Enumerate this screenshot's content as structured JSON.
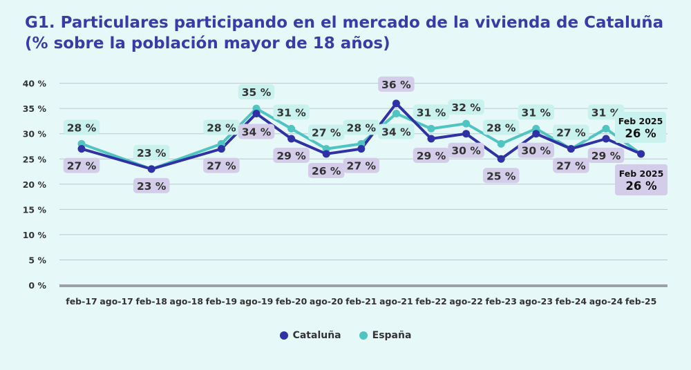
{
  "chart_data": {
    "type": "line",
    "title_line1": "G1. Particulares participando en el mercado de la vivienda de Cataluña",
    "title_line2": "(% sobre la población mayor de 18 años)",
    "categories": [
      "feb-17",
      "ago-17",
      "feb-18",
      "ago-18",
      "feb-19",
      "ago-19",
      "feb-20",
      "ago-20",
      "feb-21",
      "ago-21",
      "feb-22",
      "ago-22",
      "feb-23",
      "ago-23",
      "feb-24",
      "ago-24",
      "feb-25"
    ],
    "yticks": [
      "0 %",
      "5 %",
      "10 %",
      "15 %",
      "20 %",
      "25 %",
      "30 %",
      "35 %",
      "40 %"
    ],
    "ylim": [
      0,
      40
    ],
    "grid": true,
    "series": [
      {
        "name": "Cataluña",
        "color": "#3131a6",
        "values": [
          27,
          null,
          23,
          null,
          27,
          34,
          29,
          26,
          27,
          36,
          29,
          30,
          25,
          30,
          27,
          29,
          26
        ],
        "labels": [
          "27 %",
          null,
          "23 %",
          null,
          "27 %",
          "34 %",
          "29 %",
          "26 %",
          "27 %",
          "36 %",
          "29 %",
          "30 %",
          "25 %",
          "30 %",
          "27 %",
          "29 %",
          null
        ]
      },
      {
        "name": "España",
        "color": "#4fc4c0",
        "values": [
          28,
          null,
          23,
          null,
          28,
          35,
          31,
          27,
          28,
          34,
          31,
          32,
          28,
          31,
          27,
          31,
          26
        ],
        "labels": [
          "28 %",
          null,
          "23 %",
          null,
          "28 %",
          "35 %",
          "31 %",
          "27 %",
          "28 %",
          "34 %",
          "31 %",
          "32 %",
          "28 %",
          "31 %",
          "27 %",
          "31 %",
          null
        ]
      }
    ],
    "final_callouts": [
      {
        "series": "España",
        "date": "Feb 2025",
        "value": "26 %"
      },
      {
        "series": "Cataluña",
        "date": "Feb 2025",
        "value": "26 %"
      }
    ],
    "legend": [
      "Cataluña",
      "España"
    ]
  }
}
